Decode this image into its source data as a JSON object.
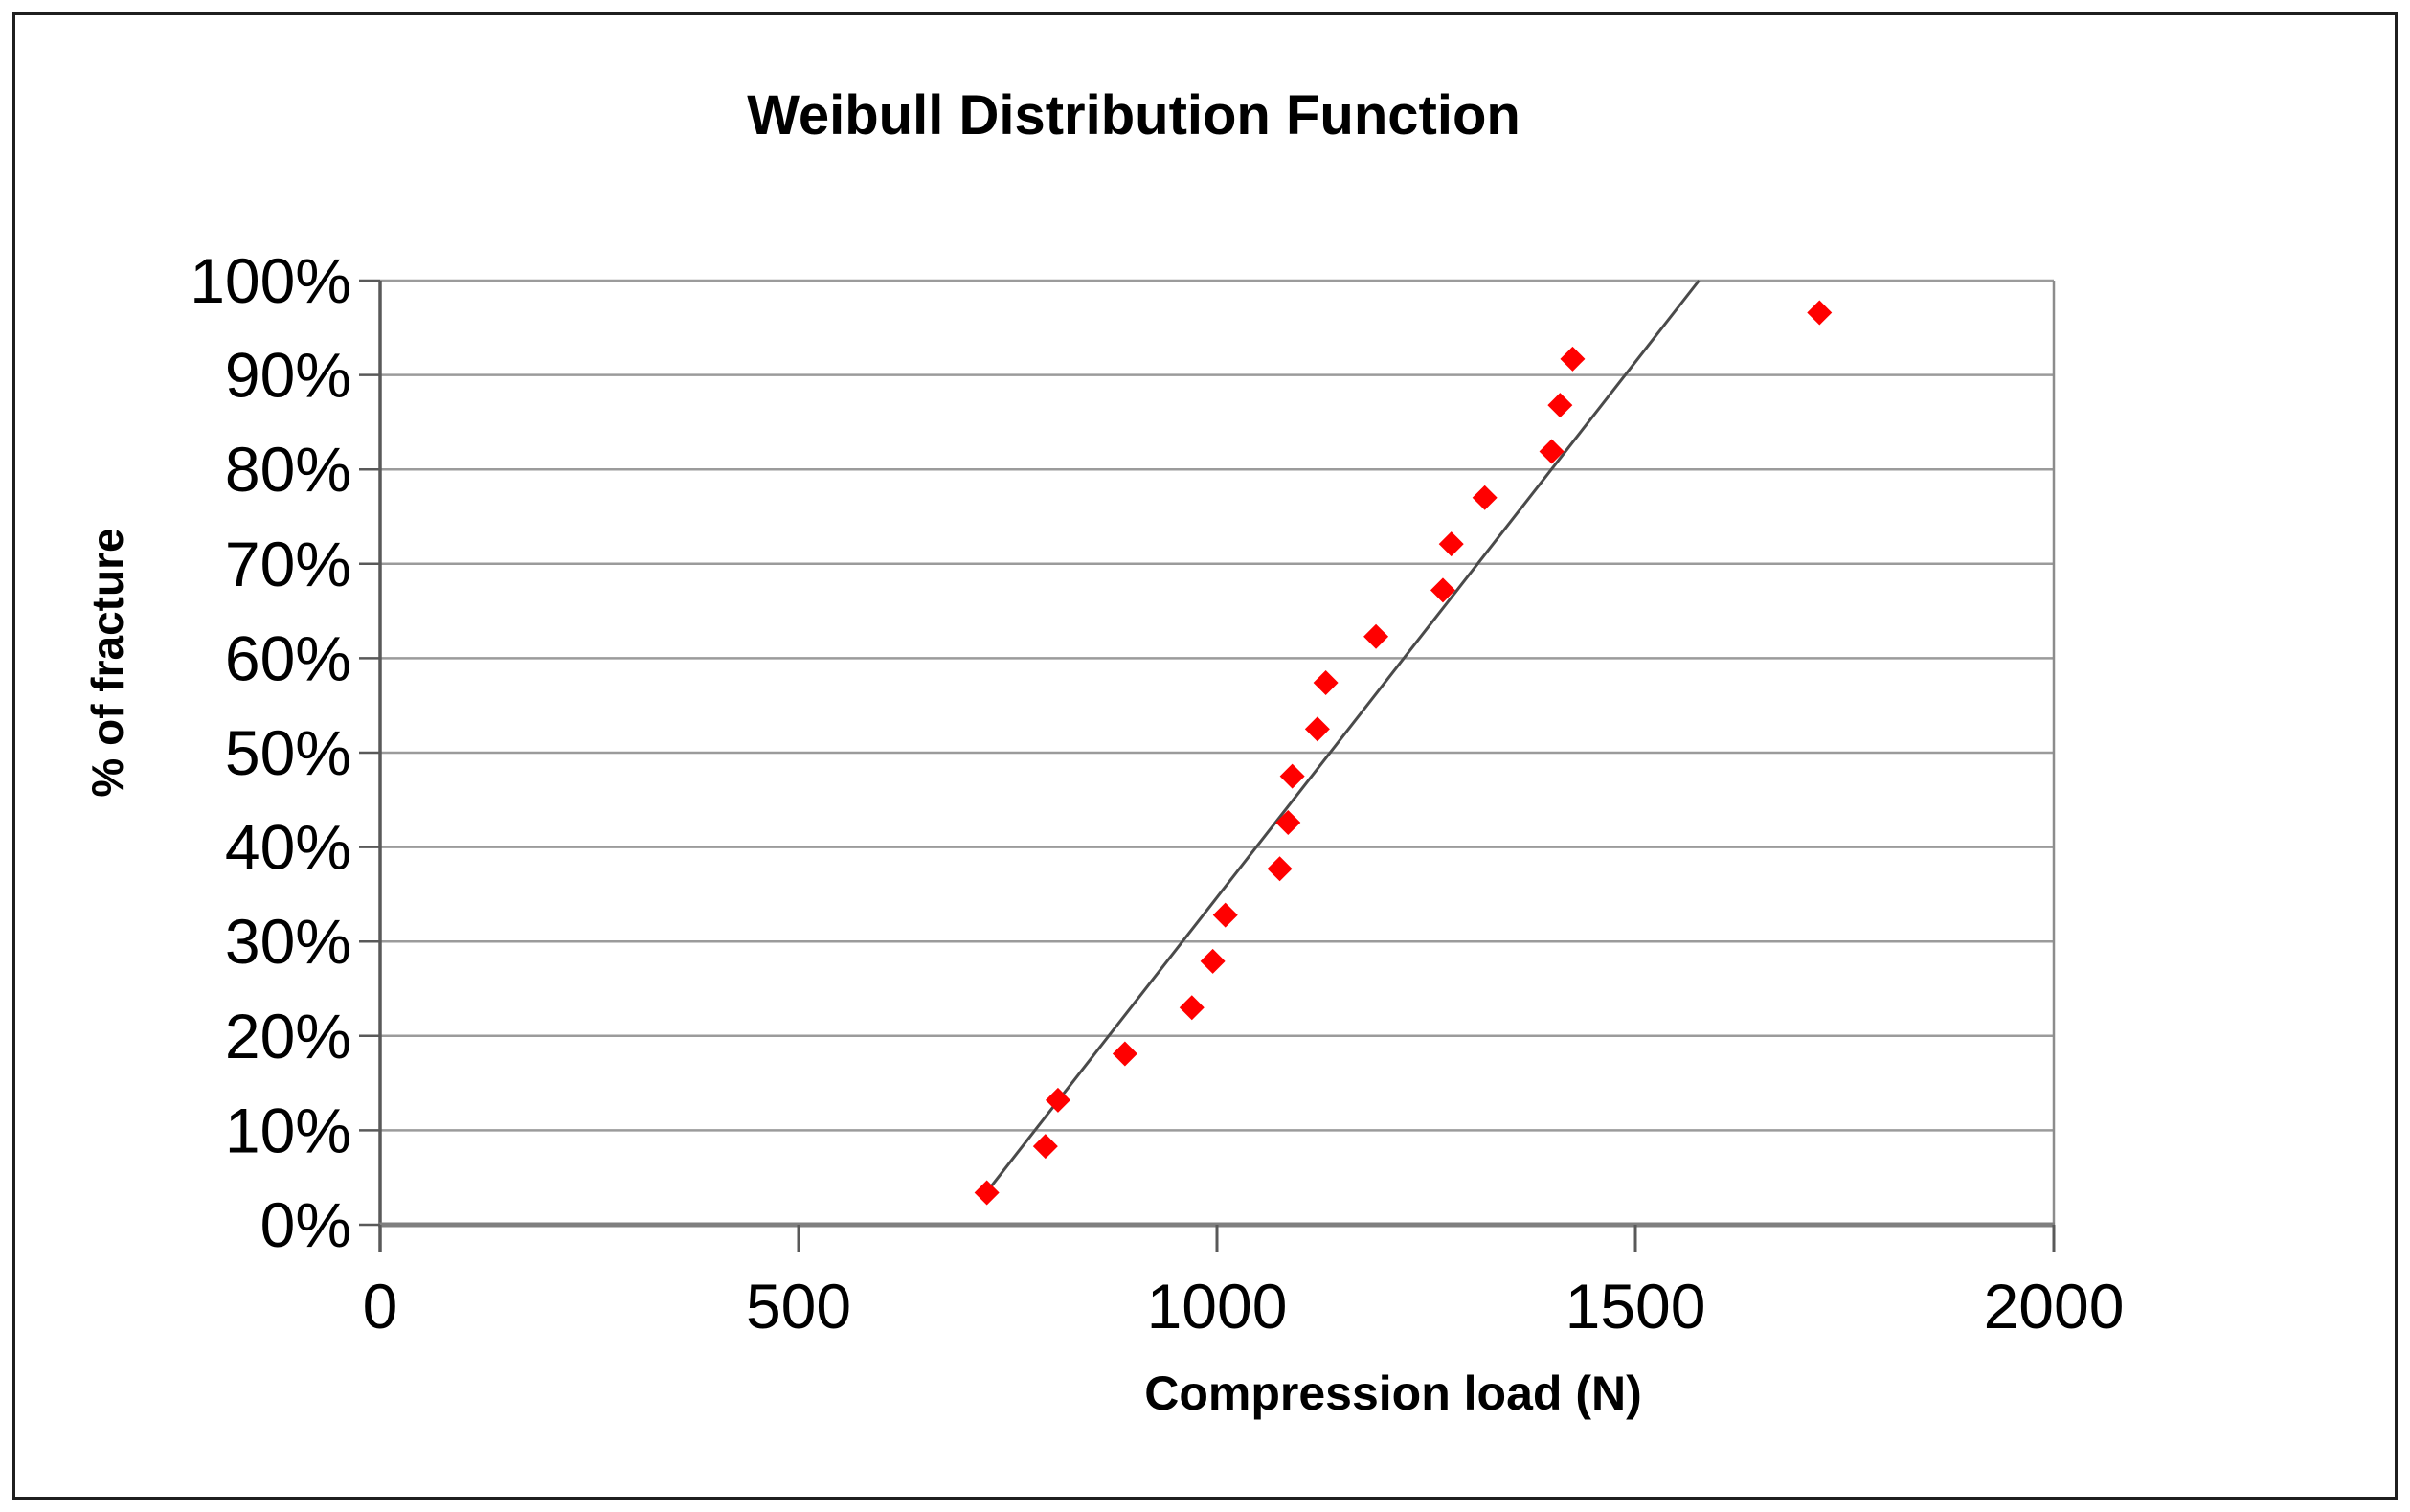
{
  "chart_data": {
    "type": "scatter",
    "title": "Weibull Distribution Function",
    "xlabel": "Compression load (N)",
    "ylabel": "% of fracture",
    "xlim": [
      0,
      2000
    ],
    "ylim": [
      0,
      100
    ],
    "x_ticks": [
      0,
      500,
      1000,
      1500,
      2000
    ],
    "x_tick_labels": [
      "0",
      "500",
      "1000",
      "1500",
      "2000"
    ],
    "y_ticks": [
      0,
      10,
      20,
      30,
      40,
      50,
      60,
      70,
      80,
      90,
      100
    ],
    "y_tick_labels": [
      "0%",
      "10%",
      "20%",
      "30%",
      "40%",
      "50%",
      "60%",
      "70%",
      "80%",
      "90%",
      "100%"
    ],
    "grid": "horizontal-only",
    "legend": "none",
    "series": [
      {
        "name": "fracture-probability-points",
        "marker": "diamond",
        "color": "#FF0000",
        "points": [
          {
            "x": 725,
            "y": 3.4
          },
          {
            "x": 795,
            "y": 8.3
          },
          {
            "x": 810,
            "y": 13.2
          },
          {
            "x": 890,
            "y": 18.1
          },
          {
            "x": 970,
            "y": 23.0
          },
          {
            "x": 995,
            "y": 27.9
          },
          {
            "x": 1010,
            "y": 32.8
          },
          {
            "x": 1075,
            "y": 37.7
          },
          {
            "x": 1085,
            "y": 42.6
          },
          {
            "x": 1090,
            "y": 47.5
          },
          {
            "x": 1120,
            "y": 52.5
          },
          {
            "x": 1130,
            "y": 57.4
          },
          {
            "x": 1190,
            "y": 62.3
          },
          {
            "x": 1270,
            "y": 67.2
          },
          {
            "x": 1280,
            "y": 72.1
          },
          {
            "x": 1320,
            "y": 77.0
          },
          {
            "x": 1400,
            "y": 81.9
          },
          {
            "x": 1410,
            "y": 86.8
          },
          {
            "x": 1425,
            "y": 91.7
          },
          {
            "x": 1720,
            "y": 96.6
          }
        ]
      }
    ],
    "trendline": {
      "type": "linear",
      "x1": 719,
      "y1": 2.8,
      "x2": 1576,
      "y2": 100
    }
  },
  "colors": {
    "point": "#FF0000",
    "gridline": "#9b9b9b",
    "axis_left": "#595959",
    "axis_bottom": "#7f7f7f",
    "frame_right": "#8c8c8c",
    "tick": "#595959",
    "trendline": "#4a4a4a",
    "outer_border": "#1f1f1f"
  }
}
